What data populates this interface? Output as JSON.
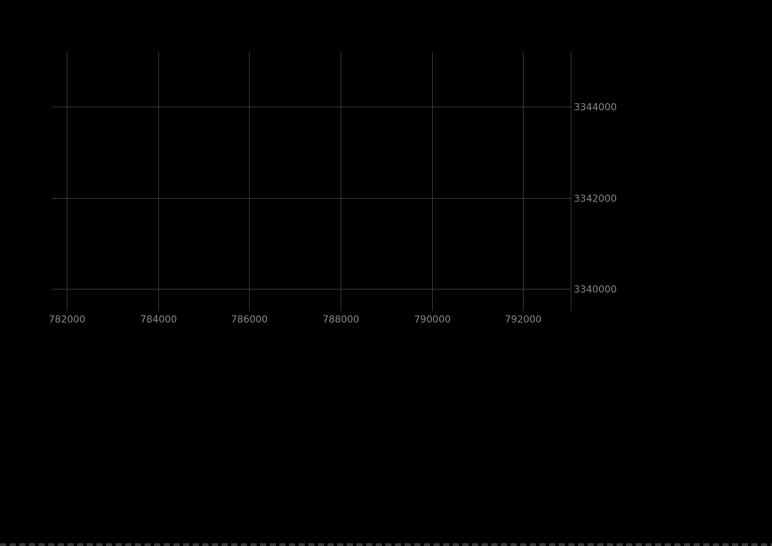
{
  "map": {
    "background_color": "#000000",
    "grid_color": "#3c3c3c",
    "label_color": "#8a8a8a",
    "x_ticks": [
      782000,
      784000,
      786000,
      788000,
      790000,
      792000
    ],
    "x_tick_labels": [
      "782000",
      "784000",
      "786000",
      "788000",
      "790000",
      "792000"
    ],
    "y_ticks": [
      3344000,
      3342000,
      3340000
    ],
    "y_tick_labels": [
      "3344000",
      "3342000",
      "3340000"
    ],
    "x_extent": [
      781680,
      793050
    ],
    "y_extent": [
      3339520,
      3345200
    ]
  }
}
